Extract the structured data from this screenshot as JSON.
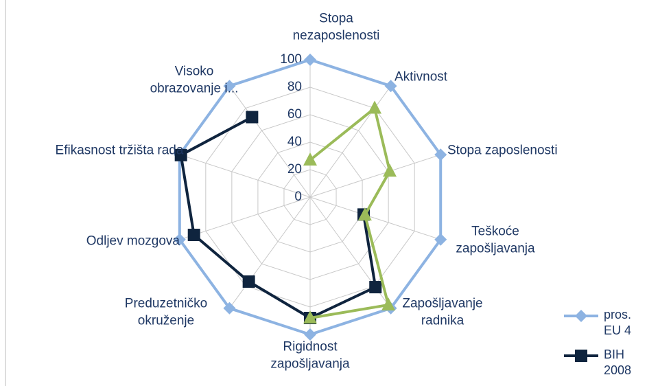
{
  "chart_data": {
    "type": "radar",
    "categories": [
      "Stopa nezaposlenosti",
      "Aktivnost",
      "Stopa zaposlenosti",
      "Teškoće zapošljavanja",
      "Zapošljavanje radnika",
      "Rigidnost zapošljavanja",
      "Preduzetničko okruženje",
      "Odljev mozgova",
      "Efikasnost tržišta rada",
      "Visoko obrazovanje i..."
    ],
    "series": [
      {
        "name": "pros. EU 4",
        "color": "#8db3e2",
        "marker": "diamond",
        "values": [
          100,
          100,
          100,
          100,
          100,
          100,
          100,
          100,
          100,
          100
        ]
      },
      {
        "name": "BIH 2008",
        "color": "#0f243e",
        "marker": "square",
        "values": [
          null,
          null,
          null,
          41,
          81,
          88,
          76,
          89,
          99,
          72
        ]
      },
      {
        "color": "#9bbb59",
        "marker": "triangle",
        "values": [
          27,
          80,
          61,
          42,
          97,
          88,
          null,
          null,
          null,
          null
        ]
      }
    ],
    "ylim": [
      0,
      100
    ],
    "yticks": [
      0,
      20,
      40,
      60,
      80,
      100
    ],
    "grid": true
  }
}
